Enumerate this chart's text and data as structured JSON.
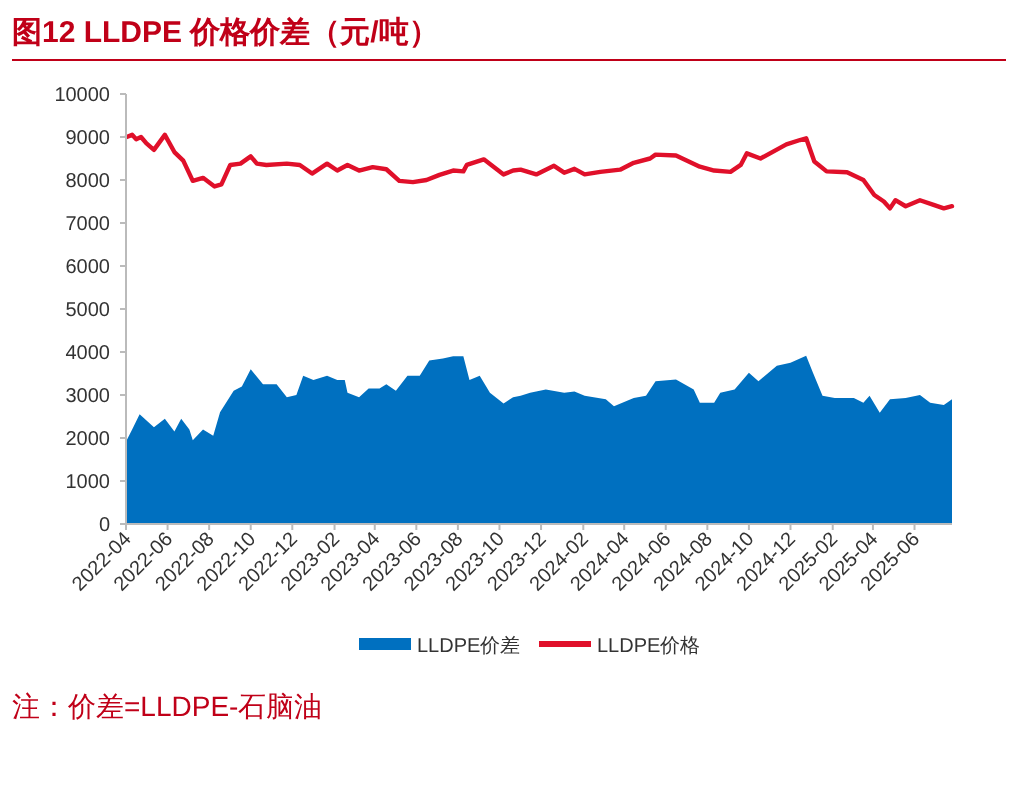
{
  "chart_data": {
    "type": "area",
    "title": "图12  LLDPE 价格价差（元/吨）",
    "series": [
      {
        "name": "LLDPE价差",
        "color": "#0070c0",
        "x": [
          "2022-04-02",
          "2022-04-10",
          "2022-04-21",
          "2022-05-12",
          "2022-05-28",
          "2022-06-11",
          "2022-06-21",
          "2022-07-03",
          "2022-07-08",
          "2022-07-23",
          "2022-08-07",
          "2022-08-17",
          "2022-09-06",
          "2022-09-18",
          "2022-10-01",
          "2022-10-19",
          "2022-11-08",
          "2022-11-23",
          "2022-12-07",
          "2022-12-17",
          "2023-01-01",
          "2023-01-21",
          "2023-02-05",
          "2023-02-16",
          "2023-02-20",
          "2023-03-09",
          "2023-03-23",
          "2023-04-08",
          "2023-04-18",
          "2023-05-02",
          "2023-05-19",
          "2023-06-06",
          "2023-06-20",
          "2023-07-10",
          "2023-07-25",
          "2023-08-09",
          "2023-08-18",
          "2023-09-02",
          "2023-09-17",
          "2023-10-07",
          "2023-10-21",
          "2023-11-01",
          "2023-11-15",
          "2023-12-08",
          "2024-01-04",
          "2024-01-19",
          "2024-02-03",
          "2024-03-05",
          "2024-03-17",
          "2024-04-15",
          "2024-05-03",
          "2024-05-17",
          "2024-06-16",
          "2024-07-12",
          "2024-07-21",
          "2024-08-11",
          "2024-08-20",
          "2024-09-10",
          "2024-10-01",
          "2024-10-15",
          "2024-11-11",
          "2024-12-01",
          "2024-12-24",
          "2025-01-03",
          "2025-01-17",
          "2025-02-04",
          "2025-03-04",
          "2025-03-18",
          "2025-03-27",
          "2025-04-11",
          "2025-04-26",
          "2025-05-19",
          "2025-06-09",
          "2025-06-24",
          "2025-07-14",
          "2025-07-26"
        ],
        "values": [
          1950,
          2200,
          2550,
          2250,
          2450,
          2150,
          2450,
          2200,
          1950,
          2200,
          2050,
          2600,
          3100,
          3200,
          3600,
          3250,
          3250,
          2950,
          3000,
          3450,
          3350,
          3450,
          3350,
          3350,
          3050,
          2950,
          3150,
          3150,
          3250,
          3100,
          3450,
          3450,
          3800,
          3850,
          3900,
          3900,
          3350,
          3450,
          3050,
          2800,
          2950,
          2980,
          3050,
          3130,
          3050,
          3080,
          2980,
          2900,
          2740,
          2930,
          2980,
          3320,
          3360,
          3130,
          2820,
          2820,
          3050,
          3130,
          3520,
          3320,
          3680,
          3750,
          3910,
          3520,
          2980,
          2930,
          2930,
          2820,
          2980,
          2590,
          2900,
          2930,
          3000,
          2820,
          2770,
          2900
        ]
      },
      {
        "name": "LLDPE价格",
        "type": "line",
        "color": "#e0102a",
        "x": [
          "2022-04-02",
          "2022-04-10",
          "2022-04-16",
          "2022-04-23",
          "2022-05-01",
          "2022-05-12",
          "2022-05-28",
          "2022-06-11",
          "2022-06-24",
          "2022-07-08",
          "2022-07-23",
          "2022-08-09",
          "2022-08-19",
          "2022-09-01",
          "2022-09-16",
          "2022-10-01",
          "2022-10-10",
          "2022-10-24",
          "2022-11-23",
          "2022-12-12",
          "2022-12-30",
          "2023-01-21",
          "2023-02-05",
          "2023-02-20",
          "2023-03-09",
          "2023-03-29",
          "2023-04-18",
          "2023-05-07",
          "2023-05-27",
          "2023-06-16",
          "2023-07-05",
          "2023-07-25",
          "2023-08-09",
          "2023-08-14",
          "2023-09-08",
          "2023-10-07",
          "2023-10-21",
          "2023-11-01",
          "2023-11-24",
          "2023-12-20",
          "2024-01-04",
          "2024-01-19",
          "2024-02-03",
          "2024-02-26",
          "2024-03-26",
          "2024-04-15",
          "2024-05-09",
          "2024-05-17",
          "2024-06-16",
          "2024-07-21",
          "2024-08-11",
          "2024-09-04",
          "2024-09-19",
          "2024-09-28",
          "2024-10-18",
          "2024-11-25",
          "2024-12-15",
          "2024-12-24",
          "2025-01-05",
          "2025-01-23",
          "2025-02-22",
          "2025-03-18",
          "2025-04-03",
          "2025-04-17",
          "2025-04-26",
          "2025-05-04",
          "2025-05-19",
          "2025-06-09",
          "2025-06-29",
          "2025-07-14",
          "2025-07-26"
        ],
        "values": [
          9000,
          9050,
          8950,
          9000,
          8850,
          8700,
          9050,
          8650,
          8450,
          7980,
          8050,
          7850,
          7900,
          8350,
          8380,
          8550,
          8380,
          8350,
          8380,
          8350,
          8150,
          8380,
          8220,
          8350,
          8220,
          8300,
          8250,
          7980,
          7950,
          8000,
          8120,
          8220,
          8200,
          8350,
          8480,
          8130,
          8220,
          8240,
          8130,
          8330,
          8170,
          8260,
          8130,
          8190,
          8240,
          8400,
          8500,
          8590,
          8570,
          8310,
          8220,
          8190,
          8350,
          8620,
          8500,
          8830,
          8930,
          8970,
          8430,
          8200,
          8180,
          8000,
          7650,
          7500,
          7340,
          7530,
          7390,
          7530,
          7420,
          7340,
          7390
        ]
      }
    ],
    "xlim": [
      "2022-04-01",
      "2025-07-26"
    ],
    "xticks": [
      {
        "value": "2022-04-01",
        "label": "2022-04"
      },
      {
        "value": "2022-06-01",
        "label": "2022-06"
      },
      {
        "value": "2022-08-01",
        "label": "2022-08"
      },
      {
        "value": "2022-10-01",
        "label": "2022-10"
      },
      {
        "value": "2022-12-01",
        "label": "2022-12"
      },
      {
        "value": "2023-02-01",
        "label": "2023-02"
      },
      {
        "value": "2023-04-01",
        "label": "2023-04"
      },
      {
        "value": "2023-06-01",
        "label": "2023-06"
      },
      {
        "value": "2023-08-01",
        "label": "2023-08"
      },
      {
        "value": "2023-10-01",
        "label": "2023-10"
      },
      {
        "value": "2023-12-01",
        "label": "2023-12"
      },
      {
        "value": "2024-02-01",
        "label": "2024-02"
      },
      {
        "value": "2024-04-01",
        "label": "2024-04"
      },
      {
        "value": "2024-06-01",
        "label": "2024-06"
      },
      {
        "value": "2024-08-01",
        "label": "2024-08"
      },
      {
        "value": "2024-10-01",
        "label": "2024-10"
      },
      {
        "value": "2024-12-01",
        "label": "2024-12"
      },
      {
        "value": "2025-02-01",
        "label": "2025-02"
      },
      {
        "value": "2025-04-01",
        "label": "2025-04"
      },
      {
        "value": "2025-06-01",
        "label": "2025-06"
      }
    ],
    "ylim": [
      0,
      10000
    ],
    "yticks": [
      0,
      1000,
      2000,
      3000,
      4000,
      5000,
      6000,
      7000,
      8000,
      9000,
      10000
    ],
    "legend": "bottom",
    "grid": false,
    "annotations": [
      "注：价差=LLDPE-石脑油"
    ]
  }
}
